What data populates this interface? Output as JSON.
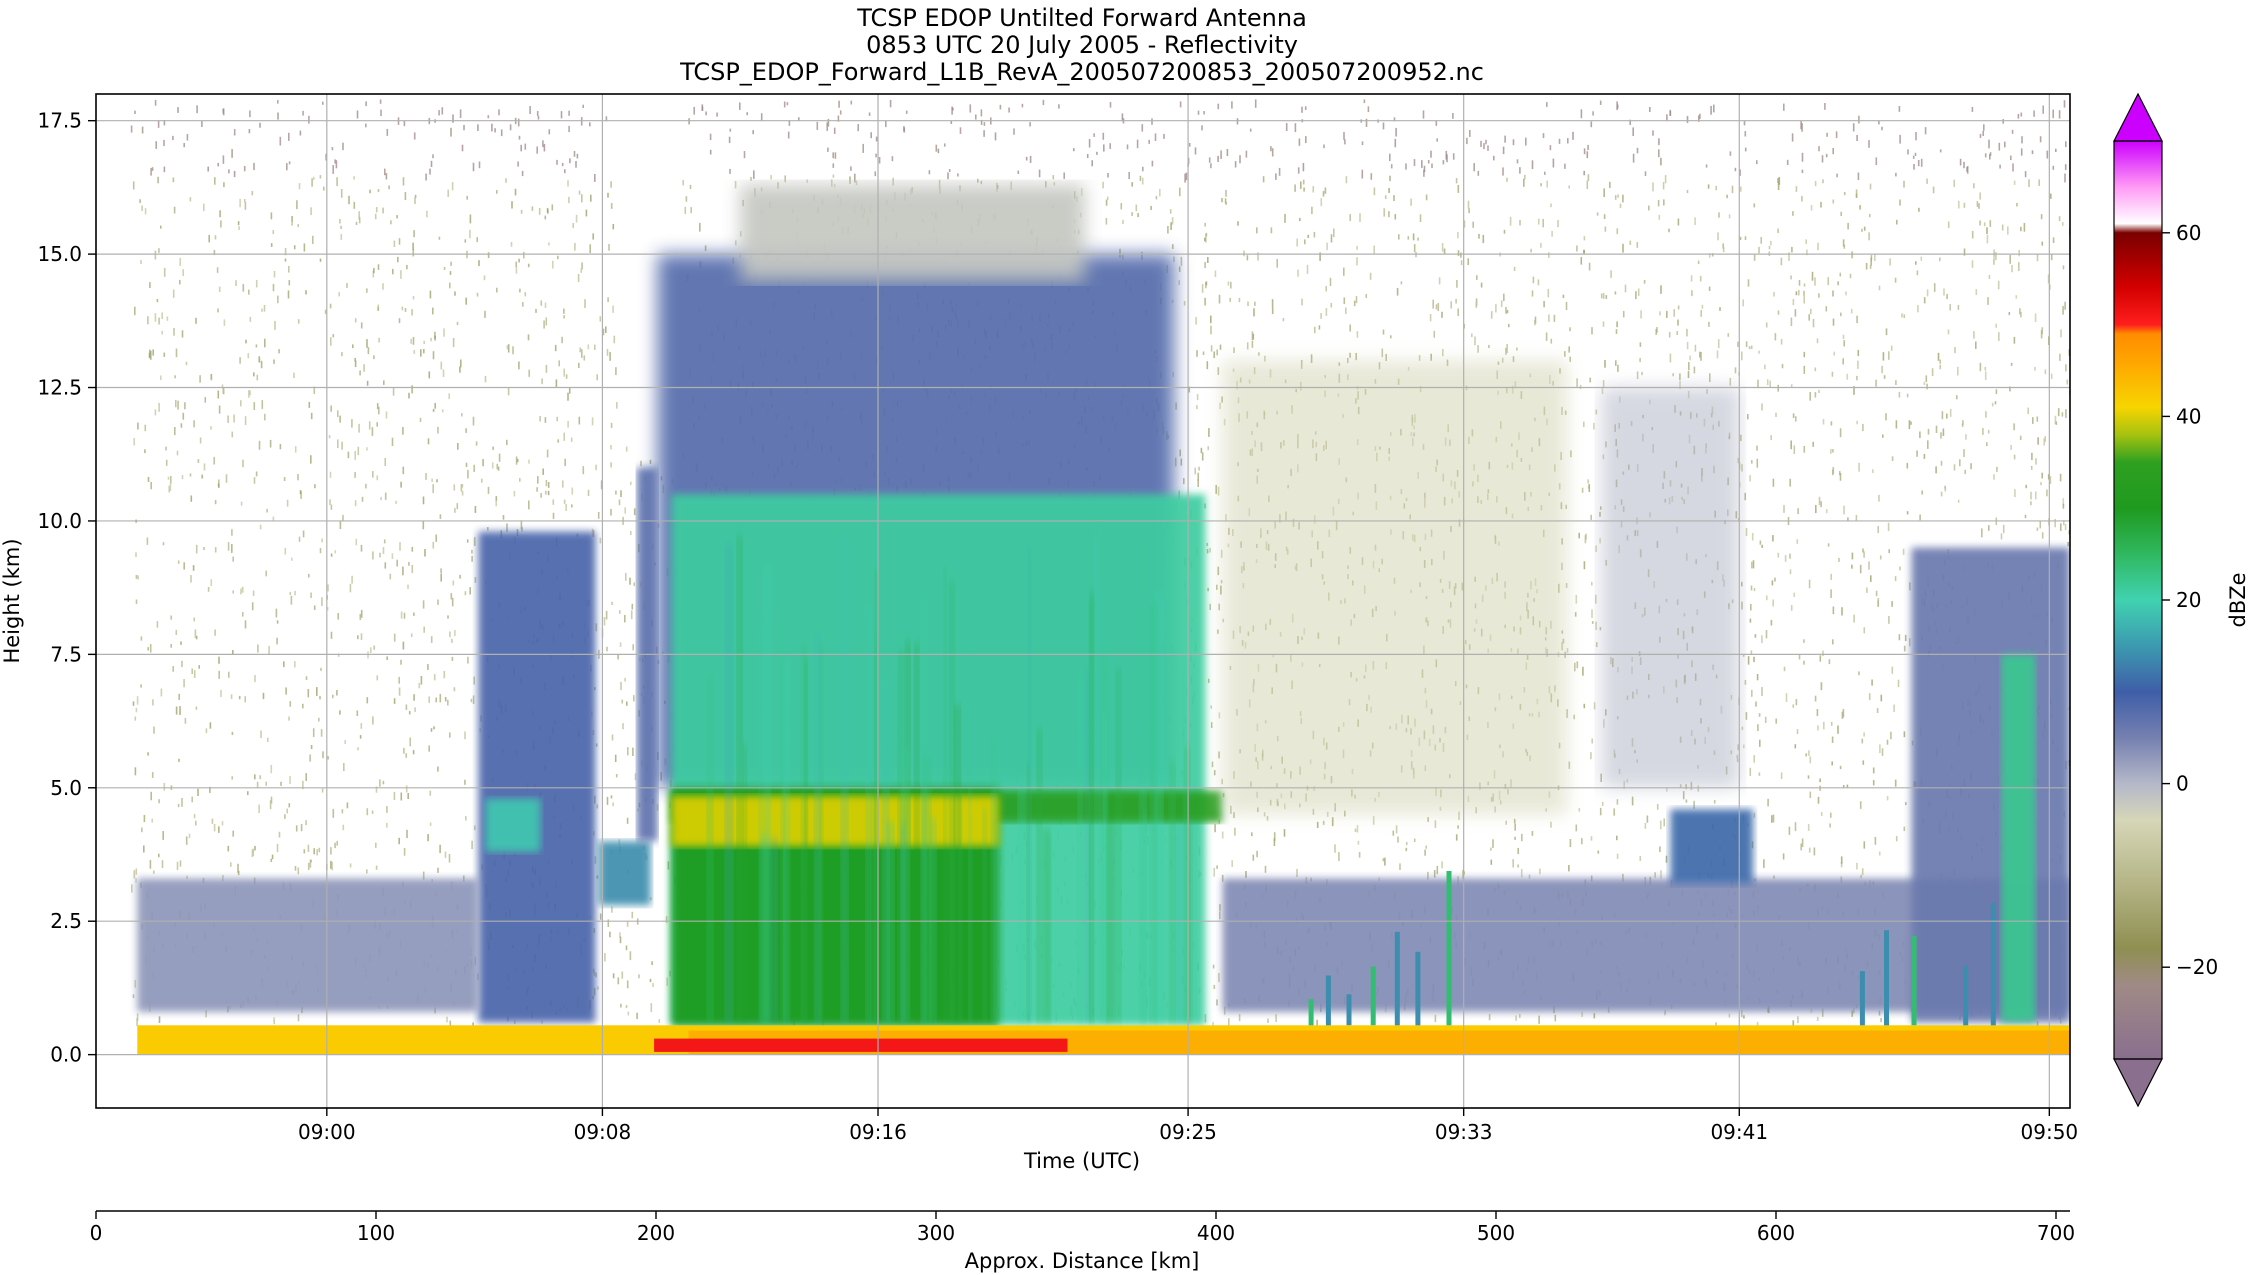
{
  "chart_data": {
    "type": "heatmap",
    "title": [
      "TCSP EDOP Untilted Forward Antenna",
      "0853 UTC 20 July 2005 - Reflectivity",
      "TCSP_EDOP_Forward_L1B_RevA_200507200853_200507200952.nc"
    ],
    "xlabel": "Time (UTC)",
    "ylabel": "Height (km)",
    "x_ticks": [
      "09:00",
      "09:08",
      "09:16",
      "09:25",
      "09:33",
      "09:41",
      "09:50"
    ],
    "x_tick_minutes": [
      60,
      68,
      76,
      85,
      93,
      101,
      110
    ],
    "xlim_minutes": [
      53.3,
      110.6
    ],
    "ylim": [
      -1.0,
      18.0
    ],
    "y_ticks": [
      0.0,
      2.5,
      5.0,
      7.5,
      10.0,
      12.5,
      15.0,
      17.5
    ],
    "y_tick_labels": [
      "0.0",
      "2.5",
      "5.0",
      "7.5",
      "10.0",
      "12.5",
      "15.0",
      "17.5"
    ],
    "grid": true,
    "colorbar": {
      "label": "dBZe",
      "range": [
        -30,
        70
      ],
      "ticks": [
        -20,
        0,
        20,
        40,
        60
      ],
      "tick_labels": [
        "−20",
        "0",
        "20",
        "40",
        "60"
      ],
      "extend": "both",
      "stops": [
        {
          "v": -30,
          "c": "#8a6f8e"
        },
        {
          "v": -22,
          "c": "#a08a86"
        },
        {
          "v": -18,
          "c": "#8f8f52"
        },
        {
          "v": -10,
          "c": "#b9b98d"
        },
        {
          "v": -4,
          "c": "#d6d6b8"
        },
        {
          "v": 0,
          "c": "#b4b8c9"
        },
        {
          "v": 5,
          "c": "#7580b0"
        },
        {
          "v": 10,
          "c": "#3f5ea8"
        },
        {
          "v": 15,
          "c": "#3c9ab0"
        },
        {
          "v": 20,
          "c": "#40d2b0"
        },
        {
          "v": 25,
          "c": "#30b860"
        },
        {
          "v": 30,
          "c": "#1f9a1f"
        },
        {
          "v": 35,
          "c": "#2fa020"
        },
        {
          "v": 38,
          "c": "#a6c210"
        },
        {
          "v": 41,
          "c": "#f7d500"
        },
        {
          "v": 46,
          "c": "#ffa500"
        },
        {
          "v": 49,
          "c": "#ff8c00"
        },
        {
          "v": 50,
          "c": "#ff1e1e"
        },
        {
          "v": 54,
          "c": "#d40000"
        },
        {
          "v": 60,
          "c": "#7a0000"
        },
        {
          "v": 61,
          "c": "#ffffff"
        },
        {
          "v": 65,
          "c": "#ff9af5"
        },
        {
          "v": 70,
          "c": "#cc00ff"
        }
      ]
    },
    "secondary_x_axis": {
      "label": "Approx. Distance [km]",
      "range": [
        0,
        705
      ],
      "ticks": [
        0,
        100,
        200,
        300,
        400,
        500,
        600,
        700
      ],
      "tick_labels": [
        "0",
        "100",
        "200",
        "300",
        "400",
        "500",
        "600",
        "700"
      ]
    },
    "features": [
      {
        "kind": "surface_band",
        "t0": 54.5,
        "t1": 110.6,
        "h0": 0.0,
        "h1": 0.55,
        "dbz": 42
      },
      {
        "kind": "surface_band",
        "t0": 70.5,
        "t1": 110.6,
        "h0": 0.0,
        "h1": 0.45,
        "dbz": 45
      },
      {
        "kind": "surface_band",
        "t0": 69.5,
        "t1": 81.5,
        "h0": 0.05,
        "h1": 0.3,
        "dbz": 51
      },
      {
        "kind": "cell",
        "t0": 64.4,
        "t1": 67.8,
        "h0": 0.6,
        "h1": 9.8,
        "dbz": 9
      },
      {
        "kind": "cell",
        "t0": 64.6,
        "t1": 66.2,
        "h0": 3.8,
        "h1": 4.8,
        "dbz": 19
      },
      {
        "kind": "cell",
        "t0": 67.9,
        "t1": 69.4,
        "h0": 2.8,
        "h1": 4.0,
        "dbz": 14
      },
      {
        "kind": "cell",
        "t0": 69.0,
        "t1": 69.6,
        "h0": 4.0,
        "h1": 11.0,
        "dbz": 7
      },
      {
        "kind": "anvil",
        "t0": 69.6,
        "t1": 84.6,
        "h0": 5.0,
        "h1": 15.0,
        "dbz": 8
      },
      {
        "kind": "anvil",
        "t0": 72.0,
        "t1": 82.0,
        "h0": 14.5,
        "h1": 16.3,
        "dbz": -2
      },
      {
        "kind": "core",
        "t0": 70.0,
        "t1": 85.5,
        "h0": 0.55,
        "h1": 10.5,
        "dbz": 21
      },
      {
        "kind": "core",
        "t0": 70.0,
        "t1": 79.5,
        "h0": 0.55,
        "h1": 5.0,
        "dbz": 30
      },
      {
        "kind": "bright_band",
        "t0": 70.0,
        "t1": 86.0,
        "h0": 4.35,
        "h1": 4.95,
        "dbz": 34
      },
      {
        "kind": "bright_band",
        "t0": 70.0,
        "t1": 79.5,
        "h0": 3.9,
        "h1": 4.85,
        "dbz": 40
      },
      {
        "kind": "stratiform",
        "t0": 86.0,
        "t1": 110.6,
        "h0": 0.8,
        "h1": 3.3,
        "dbz": 4
      },
      {
        "kind": "stratiform",
        "t0": 54.5,
        "t1": 64.4,
        "h0": 0.8,
        "h1": 3.3,
        "dbz": 3
      },
      {
        "kind": "melting",
        "t0": 99.0,
        "t1": 101.4,
        "h0": 3.2,
        "h1": 4.6,
        "dbz": 11
      },
      {
        "kind": "cell",
        "t0": 106.0,
        "t1": 110.6,
        "h0": 0.6,
        "h1": 9.5,
        "dbz": 6
      },
      {
        "kind": "cell",
        "t0": 108.6,
        "t1": 109.6,
        "h0": 0.6,
        "h1": 7.5,
        "dbz": 22
      },
      {
        "kind": "plume",
        "t0": 86.0,
        "t1": 96.0,
        "h0": 4.5,
        "h1": 13.0,
        "dbz": -4
      },
      {
        "kind": "plume",
        "t0": 97.0,
        "t1": 101.0,
        "h0": 5.0,
        "h1": 12.5,
        "dbz": 0
      }
    ]
  }
}
